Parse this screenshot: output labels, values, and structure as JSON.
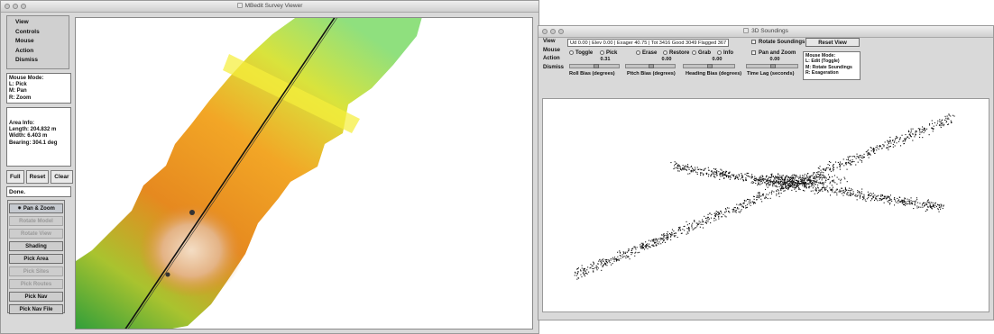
{
  "left_window": {
    "title": "MBedit Survey Viewer",
    "menu": [
      "View",
      "Controls",
      "Mouse",
      "Action",
      "Dismiss"
    ],
    "mouse_mode": {
      "heading": "Mouse Mode:",
      "lines": [
        "L: Pick",
        "M: Pan",
        "R: Zoom"
      ]
    },
    "area_info": {
      "heading": "Area Info:",
      "lines": [
        "Length: 204.832 m",
        "Width: 6.403 m",
        "Bearing: 304.1 deg"
      ]
    },
    "buttons": {
      "full": "Full",
      "reset": "Reset",
      "clear": "Clear"
    },
    "status": "Done.",
    "controls": [
      "Pan & Zoom",
      "Rotate Model",
      "Rotate View",
      "Shading",
      "Pick Area",
      "Pick Sites",
      "Pick Routes",
      "Pick Nav",
      "Pick Nav File"
    ]
  },
  "right_window": {
    "title": "3D Soundings",
    "menu": [
      "View",
      "Mouse",
      "Action",
      "Dismiss"
    ],
    "status": "Ud 0.00 | Elev 0.00 | Exager 40.75 | Tot 3416 Good 3049 Flagged 367",
    "checks": {
      "rotate": "Rotate Soundings",
      "panzoom": "Pan and Zoom"
    },
    "reset_view": "Reset View",
    "mouse_mode": [
      "Mouse Mode:",
      "L: Edit (Toggle)",
      "M: Rotate Soundings",
      "R: Exageration"
    ],
    "radios": [
      "Toggle",
      "Pick",
      "Erase",
      "Restore",
      "Grab",
      "Info"
    ],
    "slider_values": [
      "0.31",
      "0.00",
      "0.00",
      "0.00"
    ],
    "slider_labels": [
      "Roll Bias (degrees)",
      "Pitch Bias (degrees)",
      "Heading Bias (degrees)",
      "Time Lag (seconds)"
    ]
  },
  "colors": {
    "window_bg": "#d9d9d9",
    "titlebar": "#e2e2e2",
    "bathy_shallow": "#e8c7a8",
    "bathy_deep": "#7cd15a",
    "soundings": "#111111"
  }
}
